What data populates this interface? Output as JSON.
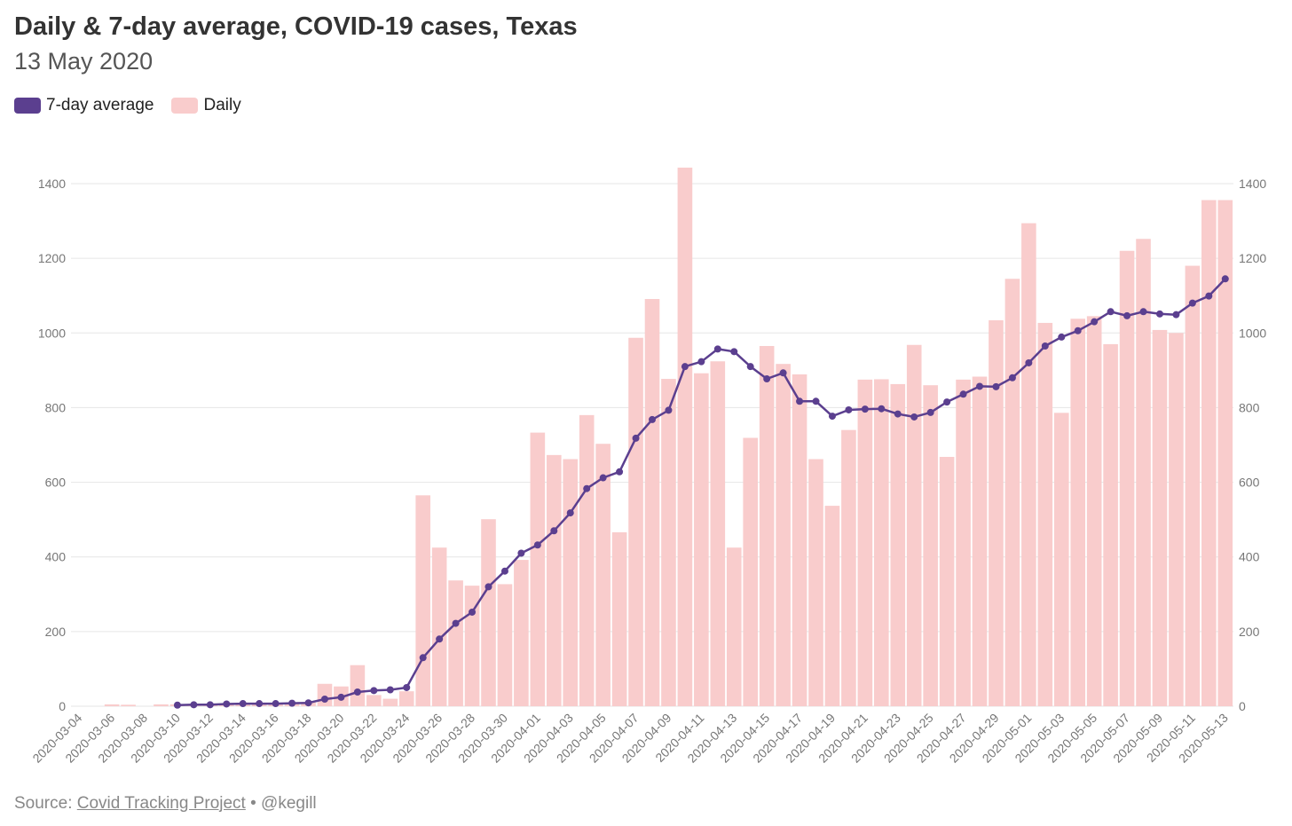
{
  "header": {
    "title": "Daily & 7-day average, COVID-19 cases, Texas",
    "subtitle": "13 May 2020"
  },
  "legend": {
    "avg_label": "7-day average",
    "daily_label": "Daily"
  },
  "colors": {
    "avg": "#5b3f8f",
    "daily": "#f9cccc",
    "grid": "#e6e6e6"
  },
  "source": {
    "prefix": "Source: ",
    "link_text": "Covid Tracking Project",
    "suffix": " • @kegill"
  },
  "chart_data": {
    "type": "bar",
    "ylim": [
      0,
      1400
    ],
    "yticks": [
      0,
      200,
      400,
      600,
      800,
      1000,
      1200,
      1400
    ],
    "categories": [
      "2020-03-04",
      "2020-03-05",
      "2020-03-06",
      "2020-03-07",
      "2020-03-08",
      "2020-03-09",
      "2020-03-10",
      "2020-03-11",
      "2020-03-12",
      "2020-03-13",
      "2020-03-14",
      "2020-03-15",
      "2020-03-16",
      "2020-03-17",
      "2020-03-18",
      "2020-03-19",
      "2020-03-20",
      "2020-03-21",
      "2020-03-22",
      "2020-03-23",
      "2020-03-24",
      "2020-03-25",
      "2020-03-26",
      "2020-03-27",
      "2020-03-28",
      "2020-03-29",
      "2020-03-30",
      "2020-03-31",
      "2020-04-01",
      "2020-04-02",
      "2020-04-03",
      "2020-04-04",
      "2020-04-05",
      "2020-04-06",
      "2020-04-07",
      "2020-04-08",
      "2020-04-09",
      "2020-04-10",
      "2020-04-11",
      "2020-04-12",
      "2020-04-13",
      "2020-04-14",
      "2020-04-15",
      "2020-04-16",
      "2020-04-17",
      "2020-04-18",
      "2020-04-19",
      "2020-04-20",
      "2020-04-21",
      "2020-04-22",
      "2020-04-23",
      "2020-04-24",
      "2020-04-25",
      "2020-04-26",
      "2020-04-27",
      "2020-04-28",
      "2020-04-29",
      "2020-04-30",
      "2020-05-01",
      "2020-05-02",
      "2020-05-03",
      "2020-05-04",
      "2020-05-05",
      "2020-05-06",
      "2020-05-07",
      "2020-05-08",
      "2020-05-09",
      "2020-05-10",
      "2020-05-11",
      "2020-05-12",
      "2020-05-13"
    ],
    "xtick_labels": [
      "2020-03-04",
      "2020-03-06",
      "2020-03-08",
      "2020-03-10",
      "2020-03-12",
      "2020-03-14",
      "2020-03-16",
      "2020-03-18",
      "2020-03-20",
      "2020-03-22",
      "2020-03-24",
      "2020-03-26",
      "2020-03-28",
      "2020-03-30",
      "2020-04-01",
      "2020-04-03",
      "2020-04-05",
      "2020-04-07",
      "2020-04-09",
      "2020-04-11",
      "2020-04-13",
      "2020-04-15",
      "2020-04-17",
      "2020-04-19",
      "2020-04-21",
      "2020-04-23",
      "2020-04-25",
      "2020-04-27",
      "2020-04-29",
      "2020-05-01",
      "2020-05-03",
      "2020-05-05",
      "2020-05-07",
      "2020-05-09",
      "2020-05-11",
      "2020-05-13"
    ],
    "series": [
      {
        "name": "Daily",
        "type": "bar",
        "values": [
          0,
          0,
          5,
          4,
          0,
          5,
          5,
          5,
          3,
          7,
          7,
          8,
          7,
          8,
          10,
          60,
          53,
          110,
          30,
          20,
          40,
          565,
          425,
          337,
          323,
          501,
          327,
          392,
          733,
          673,
          662,
          780,
          703,
          466,
          987,
          1091,
          877,
          1443,
          892,
          924,
          425,
          719,
          965,
          917,
          889,
          662,
          537,
          740,
          875,
          876,
          863,
          968,
          860,
          668,
          875,
          883,
          1034,
          1145,
          1294,
          1027,
          786,
          1038,
          1045,
          970,
          1220,
          1252,
          1008,
          1000,
          1180,
          1356,
          1356
        ]
      },
      {
        "name": "7-day average",
        "type": "line",
        "values": [
          null,
          null,
          null,
          null,
          null,
          null,
          3,
          4,
          4,
          6,
          7,
          7,
          7,
          8,
          9,
          19,
          24,
          38,
          42,
          44,
          50,
          130,
          180,
          222,
          252,
          320,
          362,
          410,
          432,
          470,
          518,
          583,
          612,
          628,
          718,
          768,
          793,
          910,
          923,
          957,
          950,
          910,
          877,
          893,
          817,
          817,
          777,
          794,
          796,
          797,
          783,
          775,
          787,
          815,
          836,
          857,
          856,
          880,
          920,
          965,
          989,
          1006,
          1030,
          1057,
          1046,
          1057,
          1051,
          1049,
          1080,
          1099,
          1145
        ]
      }
    ]
  }
}
